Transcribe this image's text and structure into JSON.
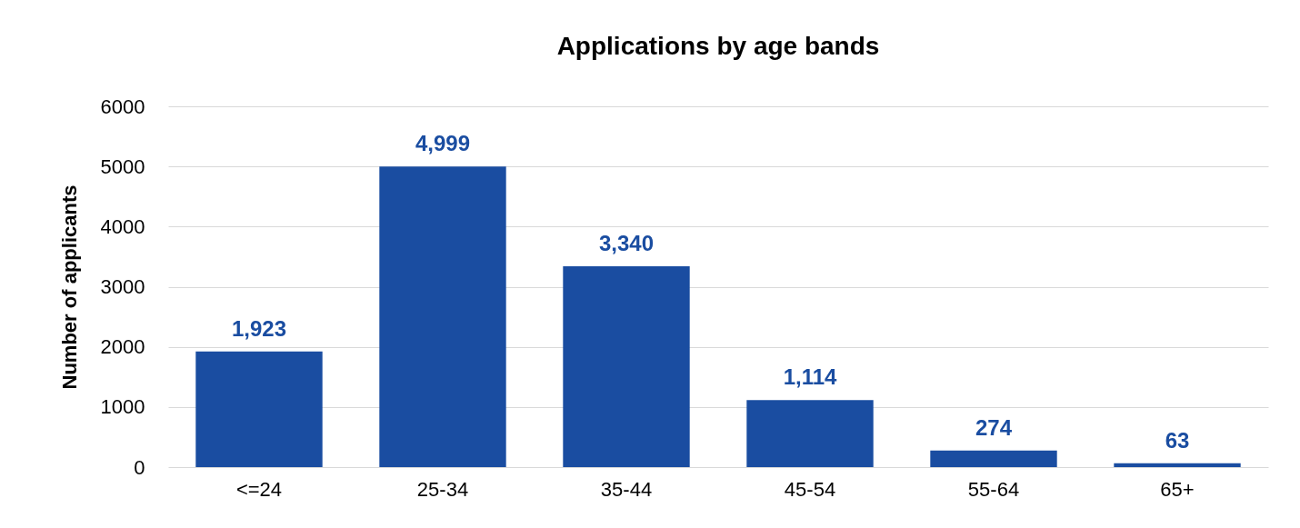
{
  "chart_data": {
    "type": "bar",
    "title": "Applications by age bands",
    "ylabel": "Number of applicants",
    "categories": [
      "<=24",
      "25-34",
      "35-44",
      "45-54",
      "55-64",
      "65+"
    ],
    "values": [
      1923,
      4999,
      3340,
      1114,
      274,
      63
    ],
    "value_labels": [
      "1,923",
      "4,999",
      "3,340",
      "1,114",
      "274",
      "63"
    ],
    "color": "#1a4da1",
    "ylim": [
      0,
      6000
    ],
    "yticks": [
      0,
      1000,
      2000,
      3000,
      4000,
      5000,
      6000
    ],
    "grid": "y"
  }
}
